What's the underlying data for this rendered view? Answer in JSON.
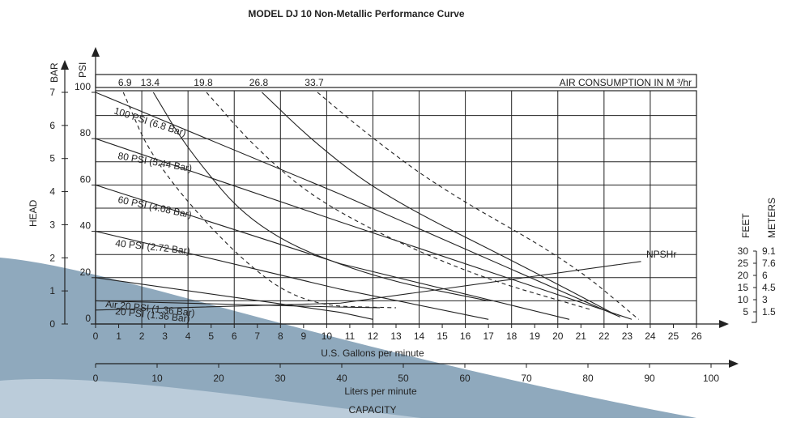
{
  "chart_data": {
    "type": "line",
    "title": "MODEL DJ 10 Non-Metallic Performance Curve",
    "xlabel": "U.S. Gallons per minute",
    "xlabel2": "Liters per minute",
    "bottom_label": "CAPACITY",
    "xlim": [
      0,
      26
    ],
    "x_ticks": [
      0,
      1,
      2,
      3,
      4,
      5,
      6,
      7,
      8,
      9,
      10,
      11,
      12,
      13,
      14,
      15,
      16,
      17,
      18,
      19,
      20,
      21,
      22,
      23,
      24,
      25,
      26
    ],
    "lpm_ticks": [
      0,
      10,
      20,
      30,
      40,
      50,
      60,
      70,
      80,
      90,
      100
    ],
    "psi_label": "PSI",
    "psi_ticks": [
      0,
      20,
      40,
      60,
      80,
      100
    ],
    "bar_label": "BAR",
    "bar_ticks": [
      0,
      1,
      2,
      3,
      4,
      5,
      6,
      7
    ],
    "head_label": "HEAD",
    "feet_label": "FEET",
    "meters_label": "METERS",
    "npsh_feet_ticks": [
      "30",
      "25",
      "20",
      "15",
      "10",
      "5"
    ],
    "npsh_meter_ticks": [
      "9.1",
      "7.6",
      "6",
      "4.5",
      "3",
      "1.5"
    ],
    "air_label": "AIR CONSUMPTION IN M ³/hr",
    "air_values": [
      "6.9",
      "13.4",
      "19.8",
      "26.8",
      "33.7"
    ],
    "series": [
      {
        "name": "100 PSI (6.8 Bar)",
        "x": [
          0,
          10.6,
          22.7
        ],
        "y": [
          100,
          56,
          3
        ]
      },
      {
        "name": "80 PSI (5.44 Bar)",
        "x": [
          0,
          10.6,
          23.2
        ],
        "y": [
          80,
          44,
          2
        ]
      },
      {
        "name": "60 PSI (4.08 Bar)",
        "x": [
          0,
          10.6,
          20.5
        ],
        "y": [
          60,
          26,
          2
        ]
      },
      {
        "name": "40 PSI (2.72 Bar)",
        "x": [
          0,
          10.6,
          17
        ],
        "y": [
          40,
          15,
          2
        ]
      },
      {
        "name": "20 PSI (1.36 Bar)",
        "x": [
          0,
          10.6,
          12
        ],
        "y": [
          20,
          5,
          2
        ]
      },
      {
        "name": "Air 20 PSI (1.36 Bar)",
        "x": [
          0,
          10.6,
          12.3
        ],
        "y": [
          10,
          7.3,
          7
        ]
      },
      {
        "name": "NPSHr",
        "x": [
          0,
          10.6,
          23.6
        ],
        "y": [
          6,
          9,
          27
        ]
      }
    ],
    "air_curves": [
      {
        "label": "6.9",
        "x": [
          1.2,
          2.5,
          6,
          9,
          13
        ],
        "y": [
          100,
          70,
          30,
          8,
          7
        ]
      },
      {
        "label": "13.4",
        "x": [
          2.5,
          4,
          7,
          12,
          17
        ],
        "y": [
          100,
          75,
          40,
          20,
          10
        ]
      },
      {
        "label": "19.8",
        "x": [
          4.8,
          7,
          10,
          16,
          21.5
        ],
        "y": [
          100,
          75,
          50,
          22,
          6
        ]
      },
      {
        "label": "26.8",
        "x": [
          7.2,
          9.5,
          12.5,
          18.5,
          22.5
        ],
        "y": [
          100,
          78,
          55,
          25,
          4
        ]
      },
      {
        "label": "33.7",
        "x": [
          9.6,
          12,
          15,
          20.5,
          23.5
        ],
        "y": [
          100,
          80,
          58,
          27,
          2
        ]
      }
    ]
  }
}
